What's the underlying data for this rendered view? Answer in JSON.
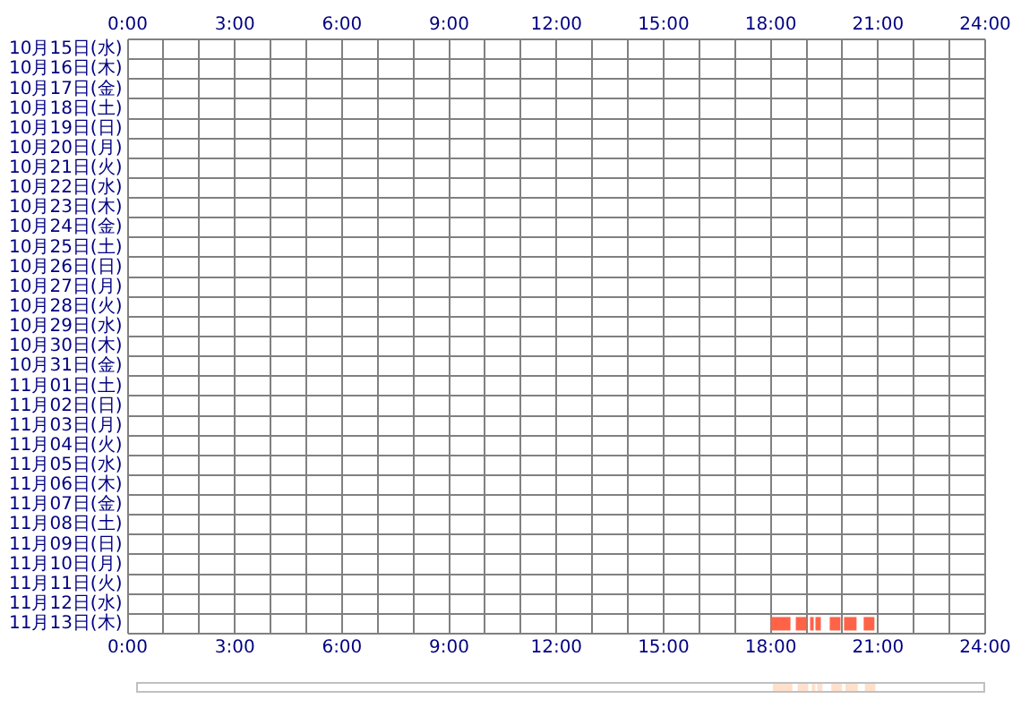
{
  "chart_data": [
    {
      "type": "bar",
      "orientation": "horizontal",
      "grid": true,
      "categories": [
        "10月15日(水)",
        "10月16日(木)",
        "10月17日(金)",
        "10月18日(土)",
        "10月19日(日)",
        "10月20日(月)",
        "10月21日(火)",
        "10月22日(水)",
        "10月23日(木)",
        "10月24日(金)",
        "10月25日(土)",
        "10月26日(日)",
        "10月27日(月)",
        "10月28日(火)",
        "10月29日(水)",
        "10月30日(木)",
        "10月31日(金)",
        "11月01日(土)",
        "11月02日(日)",
        "11月03日(月)",
        "11月04日(火)",
        "11月05日(水)",
        "11月06日(木)",
        "11月07日(金)",
        "11月08日(土)",
        "11月09日(日)",
        "11月10日(月)",
        "11月11日(火)",
        "11月12日(水)",
        "11月13日(木)"
      ],
      "series": [
        {
          "color": "#ff6347",
          "base": [
            null,
            null,
            null,
            null,
            null,
            null,
            null,
            null,
            null,
            null,
            null,
            null,
            null,
            null,
            null,
            null,
            null,
            null,
            null,
            null,
            null,
            null,
            null,
            null,
            null,
            null,
            null,
            null,
            null,
            18.0
          ],
          "values": [
            null,
            null,
            null,
            null,
            null,
            null,
            null,
            null,
            null,
            null,
            null,
            null,
            null,
            null,
            null,
            null,
            null,
            null,
            null,
            null,
            null,
            null,
            null,
            null,
            null,
            null,
            null,
            null,
            null,
            0.55
          ]
        },
        {
          "color": "#ff6347",
          "base": [
            null,
            null,
            null,
            null,
            null,
            null,
            null,
            null,
            null,
            null,
            null,
            null,
            null,
            null,
            null,
            null,
            null,
            null,
            null,
            null,
            null,
            null,
            null,
            null,
            null,
            null,
            null,
            null,
            null,
            18.7
          ],
          "values": [
            null,
            null,
            null,
            null,
            null,
            null,
            null,
            null,
            null,
            null,
            null,
            null,
            null,
            null,
            null,
            null,
            null,
            null,
            null,
            null,
            null,
            null,
            null,
            null,
            null,
            null,
            null,
            null,
            null,
            0.3
          ]
        },
        {
          "color": "#ff6347",
          "base": [
            null,
            null,
            null,
            null,
            null,
            null,
            null,
            null,
            null,
            null,
            null,
            null,
            null,
            null,
            null,
            null,
            null,
            null,
            null,
            null,
            null,
            null,
            null,
            null,
            null,
            null,
            null,
            null,
            null,
            19.1
          ],
          "values": [
            null,
            null,
            null,
            null,
            null,
            null,
            null,
            null,
            null,
            null,
            null,
            null,
            null,
            null,
            null,
            null,
            null,
            null,
            null,
            null,
            null,
            null,
            null,
            null,
            null,
            null,
            null,
            null,
            null,
            0.1
          ]
        },
        {
          "color": "#ff6347",
          "base": [
            null,
            null,
            null,
            null,
            null,
            null,
            null,
            null,
            null,
            null,
            null,
            null,
            null,
            null,
            null,
            null,
            null,
            null,
            null,
            null,
            null,
            null,
            null,
            null,
            null,
            null,
            null,
            null,
            null,
            19.25
          ],
          "values": [
            null,
            null,
            null,
            null,
            null,
            null,
            null,
            null,
            null,
            null,
            null,
            null,
            null,
            null,
            null,
            null,
            null,
            null,
            null,
            null,
            null,
            null,
            null,
            null,
            null,
            null,
            null,
            null,
            null,
            0.15
          ]
        },
        {
          "color": "#ff6347",
          "base": [
            null,
            null,
            null,
            null,
            null,
            null,
            null,
            null,
            null,
            null,
            null,
            null,
            null,
            null,
            null,
            null,
            null,
            null,
            null,
            null,
            null,
            null,
            null,
            null,
            null,
            null,
            null,
            null,
            null,
            19.65
          ],
          "values": [
            null,
            null,
            null,
            null,
            null,
            null,
            null,
            null,
            null,
            null,
            null,
            null,
            null,
            null,
            null,
            null,
            null,
            null,
            null,
            null,
            null,
            null,
            null,
            null,
            null,
            null,
            null,
            null,
            null,
            0.3
          ]
        },
        {
          "color": "#ff6347",
          "base": [
            null,
            null,
            null,
            null,
            null,
            null,
            null,
            null,
            null,
            null,
            null,
            null,
            null,
            null,
            null,
            null,
            null,
            null,
            null,
            null,
            null,
            null,
            null,
            null,
            null,
            null,
            null,
            null,
            null,
            20.05
          ],
          "values": [
            null,
            null,
            null,
            null,
            null,
            null,
            null,
            null,
            null,
            null,
            null,
            null,
            null,
            null,
            null,
            null,
            null,
            null,
            null,
            null,
            null,
            null,
            null,
            null,
            null,
            null,
            null,
            null,
            null,
            0.35
          ]
        },
        {
          "color": "#ff6347",
          "base": [
            null,
            null,
            null,
            null,
            null,
            null,
            null,
            null,
            null,
            null,
            null,
            null,
            null,
            null,
            null,
            null,
            null,
            null,
            null,
            null,
            null,
            null,
            null,
            null,
            null,
            null,
            null,
            null,
            null,
            20.6
          ],
          "values": [
            null,
            null,
            null,
            null,
            null,
            null,
            null,
            null,
            null,
            null,
            null,
            null,
            null,
            null,
            null,
            null,
            null,
            null,
            null,
            null,
            null,
            null,
            null,
            null,
            null,
            null,
            null,
            null,
            null,
            0.3
          ]
        }
      ],
      "xlim": [
        0,
        24
      ],
      "xticks": [
        {
          "value": 0,
          "label": "0:00"
        },
        {
          "value": 1,
          "label": null
        },
        {
          "value": 2,
          "label": null
        },
        {
          "value": 3,
          "label": "3:00"
        },
        {
          "value": 4,
          "label": null
        },
        {
          "value": 5,
          "label": null
        },
        {
          "value": 6,
          "label": "6:00"
        },
        {
          "value": 7,
          "label": null
        },
        {
          "value": 8,
          "label": null
        },
        {
          "value": 9,
          "label": "9:00"
        },
        {
          "value": 10,
          "label": null
        },
        {
          "value": 11,
          "label": null
        },
        {
          "value": 12,
          "label": "12:00"
        },
        {
          "value": 13,
          "label": null
        },
        {
          "value": 14,
          "label": null
        },
        {
          "value": 15,
          "label": "15:00"
        },
        {
          "value": 16,
          "label": null
        },
        {
          "value": 17,
          "label": null
        },
        {
          "value": 18,
          "label": "18:00"
        },
        {
          "value": 19,
          "label": null
        },
        {
          "value": 20,
          "label": null
        },
        {
          "value": 21,
          "label": "21:00"
        },
        {
          "value": 22,
          "label": null
        },
        {
          "value": 23,
          "label": null
        },
        {
          "value": 24,
          "label": "24:00"
        }
      ],
      "x2lim": [
        0,
        24
      ],
      "x2ticks": [
        {
          "value": 0,
          "label": "0:00"
        },
        {
          "value": 3,
          "label": "3:00"
        },
        {
          "value": 6,
          "label": "6:00"
        },
        {
          "value": 9,
          "label": "9:00"
        },
        {
          "value": 12,
          "label": "12:00"
        },
        {
          "value": 15,
          "label": "15:00"
        },
        {
          "value": 18,
          "label": "18:00"
        },
        {
          "value": 21,
          "label": "21:00"
        },
        {
          "value": 24,
          "label": "24:00"
        }
      ]
    },
    {
      "type": "bar",
      "orientation": "horizontal",
      "categories": [
        null
      ],
      "xlim": [
        0,
        24
      ],
      "series": [
        {
          "color": "#ffe0cc",
          "base": [
            18.0
          ],
          "values": [
            0.55
          ]
        },
        {
          "color": "#ffe0cc",
          "base": [
            18.7
          ],
          "values": [
            0.3
          ]
        },
        {
          "color": "#ffe0cc",
          "base": [
            19.1
          ],
          "values": [
            0.1
          ]
        },
        {
          "color": "#ffe0cc",
          "base": [
            19.25
          ],
          "values": [
            0.15
          ]
        },
        {
          "color": "#ffe0cc",
          "base": [
            19.65
          ],
          "values": [
            0.3
          ]
        },
        {
          "color": "#ffe0cc",
          "base": [
            20.05
          ],
          "values": [
            0.35
          ]
        },
        {
          "color": "#ffe0cc",
          "base": [
            20.6
          ],
          "values": [
            0.3
          ]
        }
      ]
    }
  ]
}
